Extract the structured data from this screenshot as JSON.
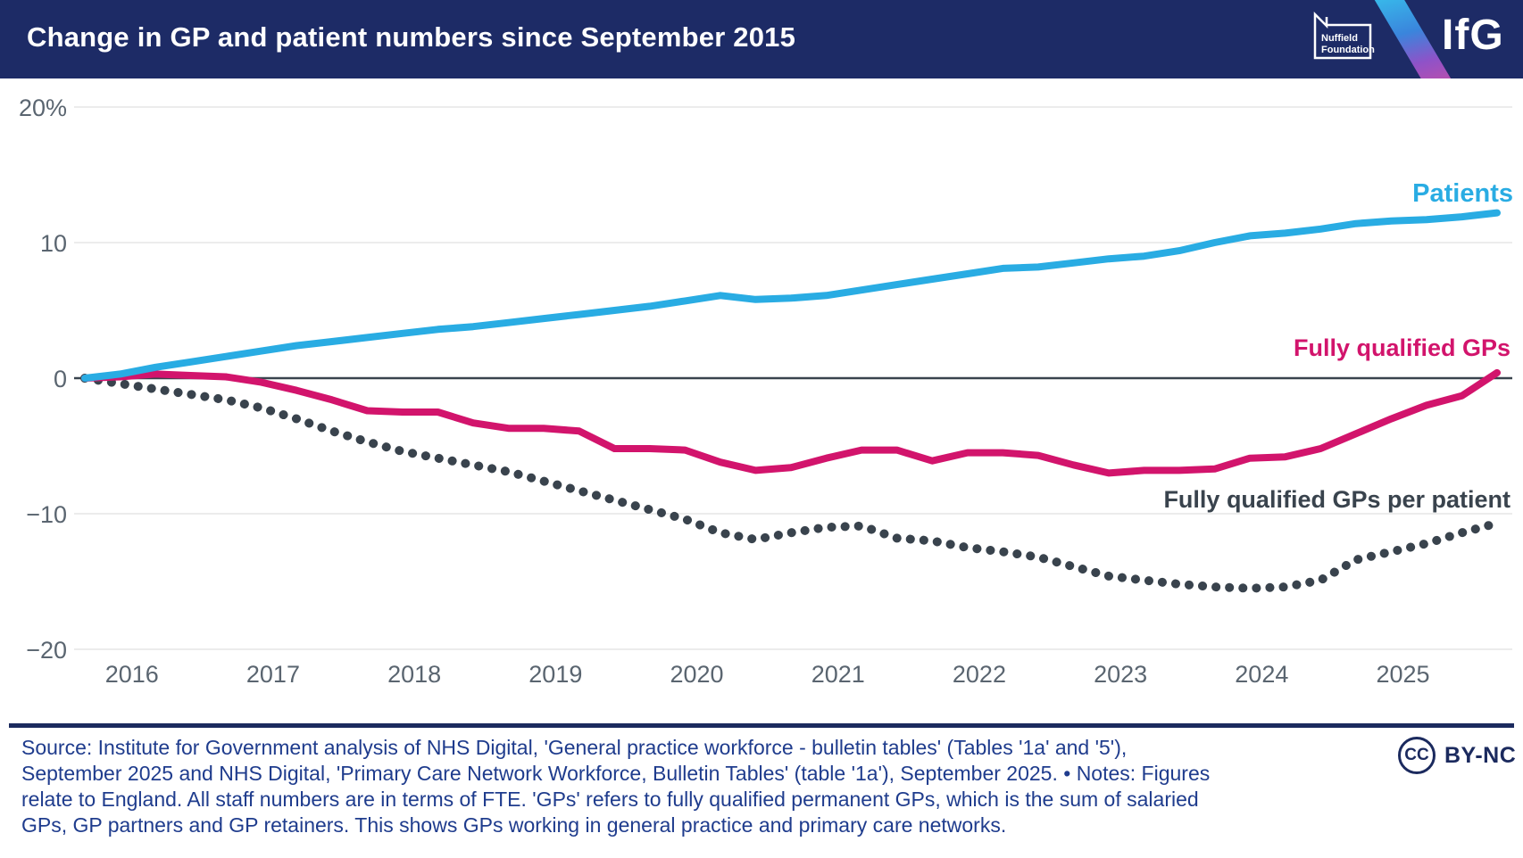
{
  "header": {
    "title": "Change in GP and patient numbers since September 2015",
    "nuffield_logo": {
      "line1": "Nuffield",
      "line2": "Foundation"
    },
    "ifg_logo": "IfG"
  },
  "chart_data": {
    "type": "line",
    "title": "Change in GP and patient numbers since September 2015",
    "x_unit": "months since September 2015",
    "x_range_labels": [
      "Sep 2015",
      "Sep 2025"
    ],
    "ylim": [
      -20,
      20
    ],
    "grid": true,
    "y_ticks": [
      {
        "value": 20,
        "label": "20%"
      },
      {
        "value": 10,
        "label": "10"
      },
      {
        "value": 0,
        "label": "0"
      },
      {
        "value": -10,
        "label": "−10"
      },
      {
        "value": -20,
        "label": "−20"
      }
    ],
    "x_tick_labels": [
      "2016",
      "2017",
      "2018",
      "2019",
      "2020",
      "2021",
      "2022",
      "2023",
      "2024",
      "2025"
    ],
    "x_months": [
      0,
      3,
      6,
      9,
      12,
      15,
      18,
      21,
      24,
      27,
      30,
      33,
      36,
      39,
      42,
      45,
      48,
      51,
      54,
      57,
      60,
      63,
      66,
      69,
      72,
      75,
      78,
      81,
      84,
      87,
      90,
      93,
      96,
      99,
      102,
      105,
      108,
      111,
      114,
      117,
      120
    ],
    "series": [
      {
        "name": "Fully qualified GPs per patient",
        "color": "#39434d",
        "style": "dotted",
        "values": [
          0,
          -0.4,
          -0.8,
          -1.2,
          -1.6,
          -2.2,
          -3.0,
          -3.9,
          -4.7,
          -5.4,
          -5.9,
          -6.4,
          -6.9,
          -7.6,
          -8.3,
          -9.0,
          -9.7,
          -10.4,
          -11.4,
          -11.9,
          -11.4,
          -11.0,
          -10.9,
          -11.8,
          -12.0,
          -12.5,
          -12.8,
          -13.2,
          -13.9,
          -14.6,
          -14.9,
          -15.2,
          -15.4,
          -15.5,
          -15.4,
          -14.9,
          -13.4,
          -12.8,
          -12.2,
          -11.4,
          -10.7
        ]
      },
      {
        "name": "Fully qualified GPs",
        "color": "#d2146c",
        "style": "solid",
        "values": [
          0,
          0.1,
          0.3,
          0.2,
          0.1,
          -0.3,
          -0.9,
          -1.6,
          -2.4,
          -2.5,
          -2.5,
          -3.3,
          -3.7,
          -3.7,
          -3.9,
          -5.2,
          -5.2,
          -5.3,
          -6.2,
          -6.8,
          -6.6,
          -5.9,
          -5.3,
          -5.3,
          -6.1,
          -5.5,
          -5.5,
          -5.7,
          -6.4,
          -7.0,
          -6.8,
          -6.8,
          -6.7,
          -5.9,
          -5.8,
          -5.2,
          -4.1,
          -3.0,
          -2.0,
          -1.3,
          0.4
        ]
      },
      {
        "name": "Patients",
        "color": "#29ace3",
        "style": "solid",
        "values": [
          0,
          0.3,
          0.8,
          1.2,
          1.6,
          2.0,
          2.4,
          2.7,
          3.0,
          3.3,
          3.6,
          3.8,
          4.1,
          4.4,
          4.7,
          5.0,
          5.3,
          5.7,
          6.1,
          5.8,
          5.9,
          6.1,
          6.5,
          6.9,
          7.3,
          7.7,
          8.1,
          8.2,
          8.5,
          8.8,
          9.0,
          9.4,
          10.0,
          10.5,
          10.7,
          11.0,
          11.4,
          11.6,
          11.7,
          11.9,
          12.2
        ]
      }
    ],
    "legend_position": "end-of-line labels, right side"
  },
  "footer": {
    "source_lines": [
      "Source: Institute for Government analysis of NHS Digital, 'General practice workforce - bulletin tables' (Tables '1a' and '5'),",
      "September 2025 and NHS Digital, 'Primary Care Network Workforce, Bulletin Tables' (table '1a'), September 2025. • Notes: Figures",
      "relate to England. All staff numbers are in terms of FTE. 'GPs' refers to fully qualified permanent GPs, which is the sum of salaried",
      "GPs, GP partners and GP retainers. This shows GPs working in general practice and primary care networks."
    ],
    "license": {
      "cc_label": "CC",
      "name": "BY-NC"
    }
  }
}
